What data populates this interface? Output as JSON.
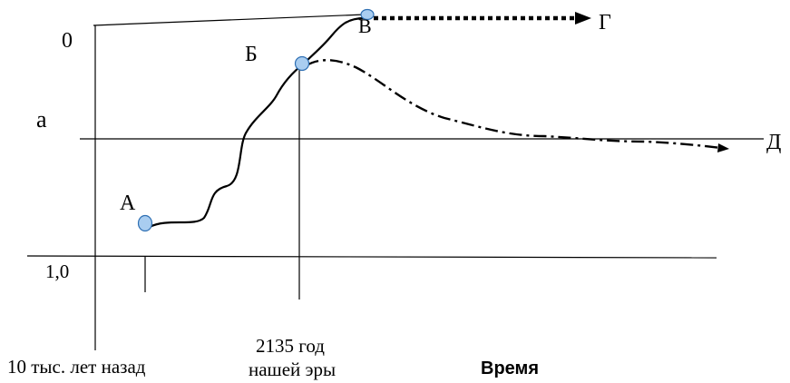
{
  "diagram": {
    "y_top_label": "0",
    "y_mid_label": "a",
    "y_bottom_label": "1,0",
    "x_axis_label": "Время",
    "x_tick_left_label": "10 тыс. лет назад",
    "x_tick_mid_label_line1": "2135 год",
    "x_tick_mid_label_line2": "нашей эры",
    "points": {
      "a": "А",
      "b": "Б",
      "v": "В",
      "g": "Г",
      "d": "Д"
    }
  },
  "colors": {
    "line": "#000000",
    "point_fill": "#a9cdf0",
    "point_stroke": "#2e6fb3"
  }
}
